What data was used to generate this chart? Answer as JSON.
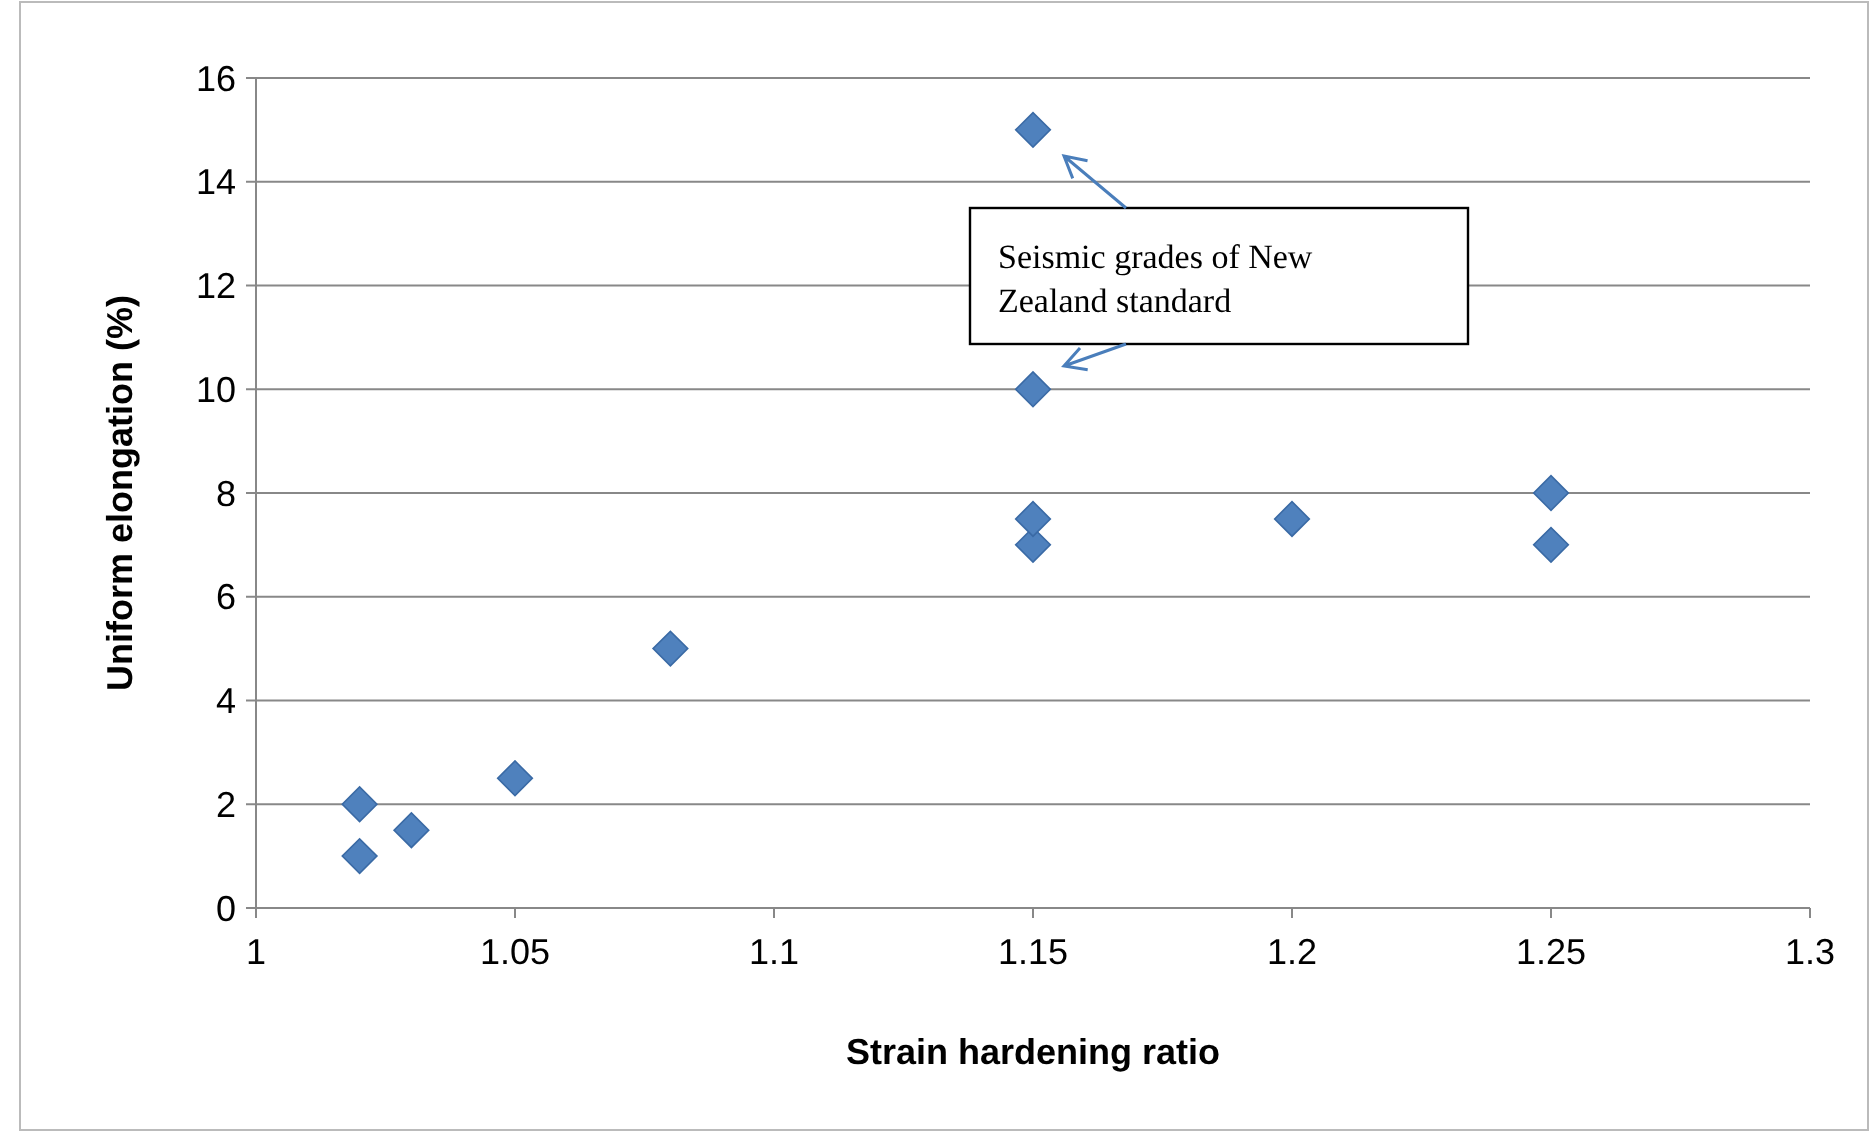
{
  "chart_data": {
    "type": "scatter",
    "xlabel": "Strain hardening ratio",
    "ylabel": "Uniform elongation (%)",
    "x": [
      1.02,
      1.02,
      1.03,
      1.05,
      1.08,
      1.15,
      1.15,
      1.15,
      1.15,
      1.2,
      1.25,
      1.25
    ],
    "series": [
      {
        "color": "#4f81bd",
        "values": [
          1,
          2,
          1.5,
          2.5,
          5,
          7,
          7.5,
          10,
          15,
          7.5,
          7,
          8
        ]
      }
    ],
    "xlim": [
      1,
      1.3
    ],
    "xticks": [
      1,
      1.05,
      1.1,
      1.15,
      1.2,
      1.25,
      1.3
    ],
    "ylim": [
      0,
      16
    ],
    "yticks": [
      0,
      2,
      4,
      6,
      8,
      10,
      12,
      14,
      16
    ],
    "grid": "y",
    "marker": "diamond",
    "annotations": [
      "Seismic grades of New Zealand standard"
    ]
  }
}
